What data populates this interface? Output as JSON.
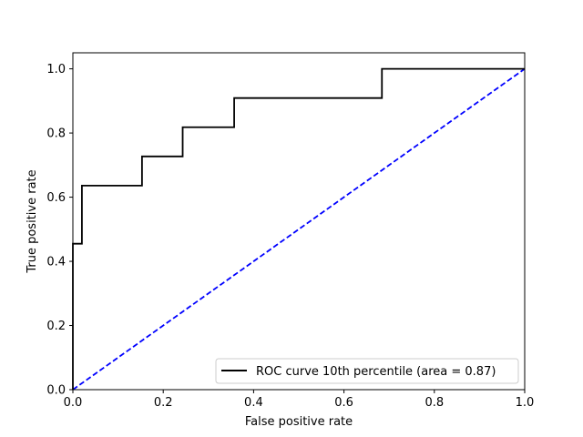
{
  "chart_data": {
    "type": "line",
    "title": "",
    "xlabel": "False positive rate",
    "ylabel": "True positive rate",
    "xlim": [
      0.0,
      1.0
    ],
    "ylim": [
      0.0,
      1.05
    ],
    "grid": false,
    "legend_position": "lower-right",
    "xticks": [
      "0.0",
      "0.2",
      "0.4",
      "0.6",
      "0.8",
      "1.0"
    ],
    "yticks": [
      "0.0",
      "0.2",
      "0.4",
      "0.6",
      "0.8",
      "1.0"
    ],
    "series": [
      {
        "name": "ROC curve 10th percentile (area = 0.87)",
        "style": "solid",
        "color": "#000000",
        "x": [
          0.0,
          0.0,
          0.02,
          0.02,
          0.153,
          0.153,
          0.243,
          0.243,
          0.357,
          0.357,
          0.684,
          0.684,
          1.0
        ],
        "y": [
          0.0,
          0.455,
          0.455,
          0.636,
          0.636,
          0.727,
          0.727,
          0.818,
          0.818,
          0.909,
          0.909,
          1.0,
          1.0
        ]
      },
      {
        "style": "dashed",
        "color": "#0000ff",
        "x": [
          0.0,
          1.0
        ],
        "y": [
          0.0,
          1.0
        ]
      }
    ]
  }
}
